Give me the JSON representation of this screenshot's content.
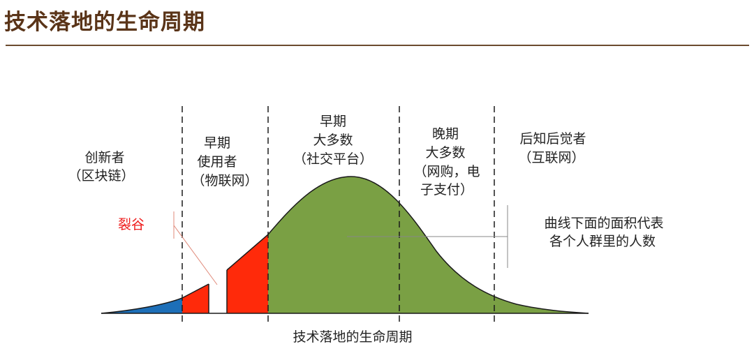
{
  "header": {
    "title": "技术落地的生命周期"
  },
  "colors": {
    "title": "#5a3418",
    "rule": "#6b4a2e",
    "innovators": "#1d6fb8",
    "early_adopters": "#ff2a0a",
    "majority": "#7aa044",
    "chasm_label": "#ee1b1b"
  },
  "segments": {
    "innovators": {
      "line1": "创新者",
      "line2": "（区块链）"
    },
    "early_adopters": {
      "line1": "早期",
      "line2": "使用者",
      "line3": "（物联网）"
    },
    "early_majority": {
      "line1": "早期",
      "line2": "大多数",
      "line3": "（社交平台）"
    },
    "late_majority": {
      "line1": "晚期",
      "line2": "大多数",
      "line3": "（网购，电",
      "line4": "子支付）"
    },
    "laggards": {
      "line1": "后知后觉者",
      "line2": "（互联网）"
    }
  },
  "chasm_label": "裂谷",
  "note": {
    "line1": "曲线下面的面积代表",
    "line2": "各个人群里的人数"
  },
  "bottom_caption": "技术落地的生命周期"
}
